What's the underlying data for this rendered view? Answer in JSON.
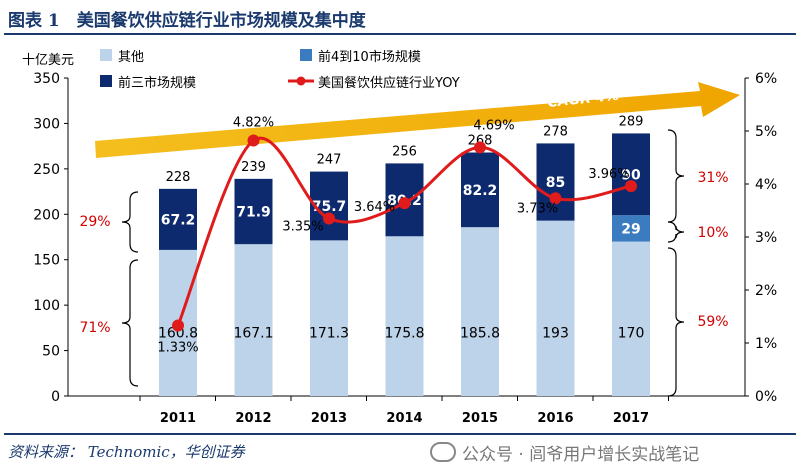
{
  "title": "图表 1　美国餐饮供应链行业市场规模及集中度",
  "source": "资料来源： Technomic，华创证券",
  "watermark": "公众号 · 闾爷用户增长实战笔记",
  "chart_data": {
    "type": "bar",
    "stacked": true,
    "ylabel_left": "十亿美元",
    "ylim_left": [
      0,
      350
    ],
    "yticks_left": [
      "0",
      "50",
      "100",
      "150",
      "200",
      "250",
      "300",
      "350"
    ],
    "ylim_right": [
      0,
      6
    ],
    "yticks_right": [
      "0%",
      "1%",
      "2%",
      "3%",
      "4%",
      "5%",
      "6%"
    ],
    "categories": [
      "2011",
      "2012",
      "2013",
      "2014",
      "2015",
      "2016",
      "2017"
    ],
    "series": [
      {
        "name": "其他",
        "color": "#bcd3ea",
        "values": [
          160.8,
          167.1,
          171.3,
          175.8,
          185.8,
          193,
          170
        ],
        "labels": [
          "160.8",
          "167.1",
          "171.3",
          "175.8",
          "185.8",
          "193",
          "170"
        ]
      },
      {
        "name": "前4到10市场规模",
        "color": "#3b7bbf",
        "values": [
          0,
          0,
          0,
          0,
          0,
          0,
          29
        ],
        "labels": [
          "",
          "",
          "",
          "",
          "",
          "",
          "29"
        ]
      },
      {
        "name": "前三市场规模",
        "color": "#0e2a6e",
        "values": [
          67.2,
          71.9,
          75.7,
          80.2,
          82.2,
          85,
          90
        ],
        "labels": [
          "67.2",
          "71.9",
          "75.7",
          "80.2",
          "82.2",
          "85",
          "90"
        ]
      }
    ],
    "totals": [
      "228",
      "239",
      "247",
      "256",
      "268",
      "278",
      "289"
    ],
    "line": {
      "name": "美国餐饮供应链行业YOY",
      "color": "#e01b1b",
      "values": [
        1.33,
        4.82,
        3.35,
        3.64,
        4.69,
        3.73,
        3.96
      ],
      "labels": [
        "1.33%",
        "4.82%",
        "3.35%",
        "3.64%",
        "4.69%",
        "3.73%",
        "3.96%"
      ]
    },
    "annotations": {
      "cagr": "CAGR 4%",
      "left_top_pct": "29%",
      "left_bottom_pct": "71%",
      "right_top_pct": "31%",
      "right_mid_pct": "10%",
      "right_bottom_pct": "59%"
    },
    "legend_position": "top-center"
  }
}
